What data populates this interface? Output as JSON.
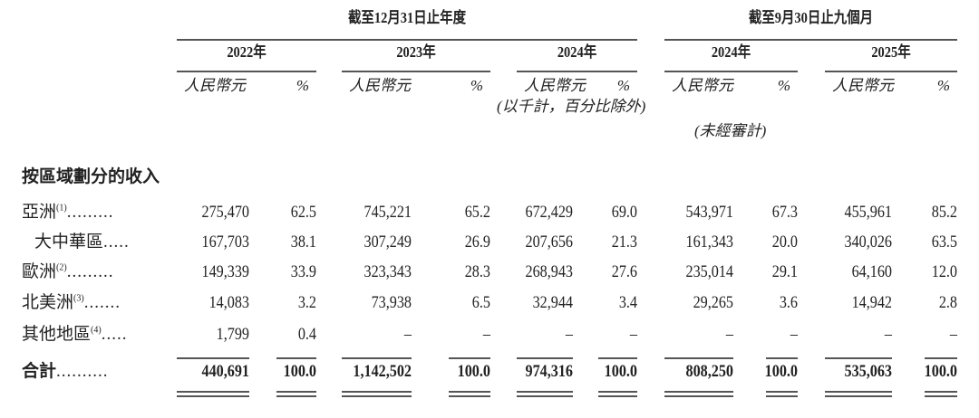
{
  "header": {
    "group_year": "截至12月31日止年度",
    "group_nine_months": "截至9月30日止九個月",
    "years": [
      "2022年",
      "2023年",
      "2024年",
      "2024年",
      "2025年"
    ],
    "unit_rmb": "人民幣元",
    "unit_pct": "%",
    "note_thousands": "(以千計，百分比除外)",
    "note_unaudited": "(未經審計)"
  },
  "section_title": "按區域劃分的收入",
  "rows": [
    {
      "label": "亞洲",
      "note": "(1)",
      "dots": ".........",
      "indent": false,
      "values": [
        "275,470",
        "62.5",
        "745,221",
        "65.2",
        "672,429",
        "69.0",
        "543,971",
        "67.3",
        "455,961",
        "85.2"
      ]
    },
    {
      "label": "大中華區",
      "note": "",
      "dots": ".....",
      "indent": true,
      "values": [
        "167,703",
        "38.1",
        "307,249",
        "26.9",
        "207,656",
        "21.3",
        "161,343",
        "20.0",
        "340,026",
        "63.5"
      ]
    },
    {
      "label": "歐洲",
      "note": "(2)",
      "dots": ".........",
      "indent": false,
      "values": [
        "149,339",
        "33.9",
        "323,343",
        "28.3",
        "268,943",
        "27.6",
        "235,014",
        "29.1",
        "64,160",
        "12.0"
      ]
    },
    {
      "label": "北美洲",
      "note": "(3)",
      "dots": ".......",
      "indent": false,
      "values": [
        "14,083",
        "3.2",
        "73,938",
        "6.5",
        "32,944",
        "3.4",
        "29,265",
        "3.6",
        "14,942",
        "2.8"
      ]
    },
    {
      "label": "其他地區",
      "note": "(4)",
      "dots": ".....",
      "indent": false,
      "values": [
        "1,799",
        "0.4",
        "–",
        "–",
        "–",
        "–",
        "–",
        "–",
        "–",
        "–"
      ]
    }
  ],
  "total": {
    "label": "合計",
    "dots": "..........",
    "values": [
      "440,691",
      "100.0",
      "1,142,502",
      "100.0",
      "974,316",
      "100.0",
      "808,250",
      "100.0",
      "535,063",
      "100.0"
    ]
  }
}
